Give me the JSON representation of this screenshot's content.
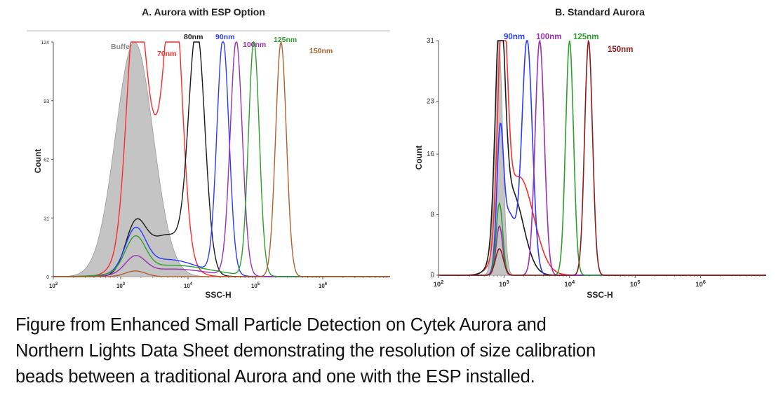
{
  "chart_data": [
    {
      "type": "area",
      "title": "A. Aurora with ESP Option",
      "xlabel": "SSC-H",
      "ylabel": "Count",
      "x_scale": "log",
      "xlim": [
        100,
        10000000
      ],
      "ylim": [
        0,
        124
      ],
      "x_ticks": [
        "10^2",
        "10^3",
        "10^4",
        "10^5",
        "10^6"
      ],
      "y_ticks": [
        "0",
        "31",
        "62",
        "93",
        "124"
      ],
      "series": [
        {
          "name": "Buffer",
          "color": "#b8b8b8",
          "filled": true,
          "peaks": [
            {
              "x": 1600,
              "height": 124,
              "width": 0.28
            }
          ]
        },
        {
          "name": "70nm",
          "color": "#ff2a2a",
          "peaks": [
            {
              "x": 1650,
              "height": 104,
              "width": 0.13
            },
            {
              "x": 6200,
              "height": 124,
              "width": 0.12
            },
            {
              "x": 3000,
              "height": 70,
              "width": 0.28
            }
          ]
        },
        {
          "name": "80nm",
          "color": "#1a1a1a",
          "peaks": [
            {
              "x": 1650,
              "height": 24,
              "width": 0.15
            },
            {
              "x": 13500,
              "height": 124,
              "width": 0.12
            },
            {
              "x": 5000,
              "height": 22,
              "width": 0.3
            }
          ]
        },
        {
          "name": "90nm",
          "color": "#2b3bff",
          "peaks": [
            {
              "x": 1650,
              "height": 21,
              "width": 0.15
            },
            {
              "x": 33000,
              "height": 124,
              "width": 0.09
            },
            {
              "x": 5000,
              "height": 9,
              "width": 0.45
            }
          ]
        },
        {
          "name": "100nm",
          "color": "#9b30b0",
          "peaks": [
            {
              "x": 1650,
              "height": 9,
              "width": 0.15
            },
            {
              "x": 52000,
              "height": 124,
              "width": 0.09
            },
            {
              "x": 6000,
              "height": 4,
              "width": 0.5
            }
          ]
        },
        {
          "name": "125nm",
          "color": "#2e9e2e",
          "peaks": [
            {
              "x": 1650,
              "height": 18,
              "width": 0.15
            },
            {
              "x": 95000,
              "height": 124,
              "width": 0.08
            },
            {
              "x": 6000,
              "height": 6,
              "width": 0.55
            }
          ]
        },
        {
          "name": "150nm",
          "color": "#b06030",
          "peaks": [
            {
              "x": 1650,
              "height": 3,
              "width": 0.15
            },
            {
              "x": 240000,
              "height": 124,
              "width": 0.08
            }
          ]
        }
      ]
    },
    {
      "type": "area",
      "title": "B. Standard Aurora",
      "xlabel": "SSC-H",
      "ylabel": "Count",
      "x_scale": "log",
      "xlim": [
        100,
        10000000
      ],
      "ylim": [
        0,
        31
      ],
      "x_ticks": [
        "10^2",
        "10^3",
        "10^4",
        "10^5",
        "10^6"
      ],
      "y_ticks": [
        "0",
        "8",
        "16",
        "23",
        "31"
      ],
      "series": [
        {
          "name": "",
          "color": "#b8b8b8",
          "filled": true,
          "peaks": [
            {
              "x": 830,
              "height": 31,
              "width": 0.06
            }
          ]
        },
        {
          "name": "",
          "color": "#ff2a2a",
          "peaks": [
            {
              "x": 950,
              "height": 31,
              "width": 0.07
            },
            {
              "x": 1700,
              "height": 13,
              "width": 0.22
            }
          ]
        },
        {
          "name": "",
          "color": "#1a1a1a",
          "peaks": [
            {
              "x": 870,
              "height": 30,
              "width": 0.07
            },
            {
              "x": 1300,
              "height": 11,
              "width": 0.18
            }
          ]
        },
        {
          "name": "90nm",
          "color": "#2b3bff",
          "peaks": [
            {
              "x": 870,
              "height": 17,
              "width": 0.05
            },
            {
              "x": 1200,
              "height": 8,
              "width": 0.1
            },
            {
              "x": 2250,
              "height": 31,
              "width": 0.08
            }
          ]
        },
        {
          "name": "100nm",
          "color": "#9b30b0",
          "peaks": [
            {
              "x": 850,
              "height": 6.5,
              "width": 0.05
            },
            {
              "x": 3500,
              "height": 31,
              "width": 0.07
            }
          ]
        },
        {
          "name": "125nm",
          "color": "#2e9e2e",
          "peaks": [
            {
              "x": 850,
              "height": 9.5,
              "width": 0.05
            },
            {
              "x": 10000,
              "height": 31,
              "width": 0.06
            }
          ]
        },
        {
          "name": "150nm",
          "color": "#8b1a1a",
          "peaks": [
            {
              "x": 850,
              "height": 3.5,
              "width": 0.06
            },
            {
              "x": 19500,
              "height": 31,
              "width": 0.06
            }
          ]
        }
      ]
    }
  ],
  "caption": [
    "Figure from Enhanced Small Particle Detection on Cytek Aurora and",
    "Northern Lights Data Sheet demonstrating the resolution of size calibration",
    "beads between a traditional Aurora and one with the ESP installed."
  ]
}
